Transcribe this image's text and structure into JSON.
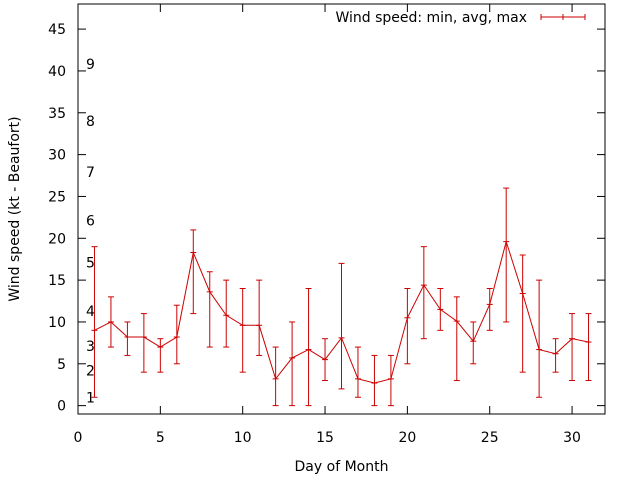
{
  "chart_data": {
    "type": "line",
    "title": "",
    "xlabel": "Day of Month",
    "ylabel": "Wind speed (kt - Beaufort)",
    "xlim": [
      0,
      32
    ],
    "ylim": [
      -1,
      48
    ],
    "xticks": [
      "0",
      "5",
      "10",
      "15",
      "20",
      "25",
      "30"
    ],
    "yticks": [
      "0",
      "5",
      "10",
      "15",
      "20",
      "25",
      "30",
      "35",
      "40",
      "45"
    ],
    "grid": false,
    "legend": {
      "position": "top-right"
    },
    "line_color": "#cc0000",
    "beaufort_labels": [
      {
        "text": "1",
        "y": 1
      },
      {
        "text": "2",
        "y": 4.2
      },
      {
        "text": "3",
        "y": 7.1
      },
      {
        "text": "4",
        "y": 11.3
      },
      {
        "text": "5",
        "y": 17.1
      },
      {
        "text": "6",
        "y": 22.1
      },
      {
        "text": "7",
        "y": 27.9
      },
      {
        "text": "8",
        "y": 34
      },
      {
        "text": "9",
        "y": 40.8
      }
    ],
    "series": [
      {
        "name": "Wind speed: min, avg, max",
        "x": [
          1,
          2,
          3,
          4,
          5,
          6,
          7,
          8,
          9,
          10,
          11,
          12,
          13,
          14,
          15,
          16,
          17,
          18,
          19,
          20,
          21,
          22,
          23,
          24,
          25,
          26,
          27,
          28,
          29,
          30,
          31
        ],
        "avg": [
          9,
          10,
          8.2,
          8.2,
          7,
          8.2,
          18.3,
          13.6,
          10.8,
          9.6,
          9.6,
          3.2,
          5.7,
          6.7,
          5.5,
          8.1,
          3.2,
          2.7,
          3.2,
          10.5,
          14.4,
          11.5,
          10.1,
          7.7,
          12.1,
          19.6,
          13.4,
          6.7,
          6.2,
          8,
          7.6
        ],
        "min": [
          1,
          7,
          6,
          4,
          4,
          5,
          11,
          7,
          7,
          4,
          6,
          0,
          0,
          0,
          3,
          2,
          1,
          0,
          0,
          5,
          8,
          9,
          3,
          5,
          9,
          10,
          4,
          1,
          4,
          3,
          3
        ],
        "max": [
          19,
          13,
          10,
          11,
          8,
          12,
          21,
          16,
          15,
          14,
          15,
          7,
          10,
          14,
          8,
          17,
          7,
          6,
          6,
          14,
          19,
          14,
          13,
          10,
          14,
          26,
          18,
          15,
          8,
          11,
          11
        ]
      }
    ]
  }
}
